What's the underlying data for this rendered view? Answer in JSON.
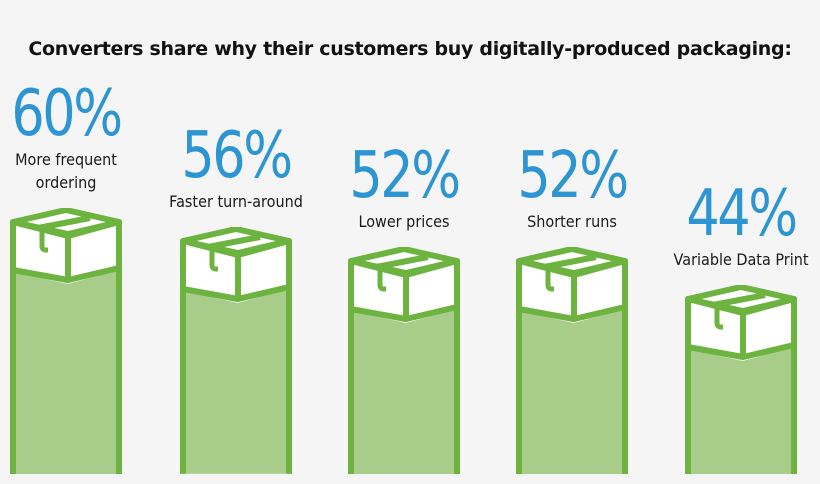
{
  "chart_data": {
    "type": "bar",
    "title": "Converters share why their customers buy digitally-produced packaging:",
    "categories": [
      "More frequent ordering",
      "Faster turn-around",
      "Lower prices",
      "Shorter runs",
      "Variable Data Print"
    ],
    "values": [
      60,
      56,
      52,
      52,
      44
    ],
    "unit": "%",
    "xlabel": "",
    "ylabel": "",
    "grid": false,
    "legend": null,
    "colors": {
      "value_text": "#2e95d3",
      "bar_fill": "#a8cd8a",
      "bar_outline": "#6db33f",
      "background": "#f5f5f5"
    }
  },
  "bars": [
    {
      "pct": "60%",
      "label_lines": [
        "More frequent",
        "ordering"
      ]
    },
    {
      "pct": "56%",
      "label_lines": [
        "Faster turn-around"
      ]
    },
    {
      "pct": "52%",
      "label_lines": [
        "Lower prices"
      ]
    },
    {
      "pct": "52%",
      "label_lines": [
        "Shorter runs"
      ]
    },
    {
      "pct": "44%",
      "label_lines": [
        "Variable Data Print"
      ]
    }
  ]
}
